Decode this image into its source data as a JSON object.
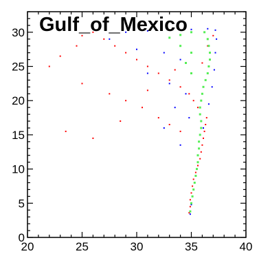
{
  "chart_data": {
    "type": "scatter",
    "title": "Gulf_of_Mexico",
    "xlabel": "",
    "ylabel": "",
    "xlim": [
      20,
      40
    ],
    "ylim": [
      0,
      33
    ],
    "xticks": [
      "20",
      "25",
      "30",
      "35",
      "40"
    ],
    "yticks": [
      "0",
      "5",
      "10",
      "15",
      "20",
      "25",
      "30"
    ],
    "grid": false,
    "legend": "none",
    "colors": {
      "series_red": "#ff0000",
      "series_blue": "#0000ff",
      "series_green": "#55ee55"
    },
    "series": [
      {
        "color": "red",
        "points": [
          [
            34.8,
            3.6
          ],
          [
            34.9,
            4.5
          ],
          [
            34.9,
            5.5
          ],
          [
            35.0,
            6.5
          ],
          [
            35.1,
            7.5
          ],
          [
            35.2,
            8.5
          ],
          [
            35.4,
            9.5
          ],
          [
            35.6,
            10.5
          ],
          [
            35.8,
            11.5
          ],
          [
            35.9,
            12.5
          ],
          [
            36.0,
            13.5
          ],
          [
            36.1,
            14.5
          ],
          [
            36.2,
            15.5
          ],
          [
            36.3,
            16.5
          ],
          [
            36.4,
            17.5
          ],
          [
            35.6,
            19.0
          ],
          [
            35.2,
            20.0
          ],
          [
            34.8,
            21.0
          ],
          [
            34.0,
            22.0
          ],
          [
            33.0,
            23.0
          ],
          [
            32.0,
            24.0
          ],
          [
            31.0,
            25.0
          ],
          [
            30.0,
            26.0
          ],
          [
            29.0,
            27.0
          ],
          [
            28.0,
            28.0
          ],
          [
            27.0,
            29.0
          ],
          [
            26.0,
            30.0
          ],
          [
            25.0,
            29.5
          ],
          [
            24.5,
            28.0
          ],
          [
            23.0,
            26.5
          ],
          [
            22.0,
            25.0
          ],
          [
            25.0,
            22.5
          ],
          [
            27.5,
            21.0
          ],
          [
            29.0,
            20.0
          ],
          [
            30.5,
            19.0
          ],
          [
            32.0,
            17.5
          ],
          [
            33.0,
            16.5
          ],
          [
            34.0,
            15.5
          ],
          [
            23.5,
            15.5
          ],
          [
            26.0,
            14.5
          ],
          [
            28.5,
            17.0
          ],
          [
            31.0,
            21.5
          ],
          [
            33.5,
            24.5
          ],
          [
            36.0,
            25.5
          ],
          [
            36.5,
            28.0
          ],
          [
            37.0,
            29.5
          ]
        ]
      },
      {
        "color": "blue",
        "points": [
          [
            34.9,
            3.4
          ],
          [
            35.0,
            4.8
          ],
          [
            35.6,
            11.0
          ],
          [
            36.1,
            16.0
          ],
          [
            36.6,
            19.5
          ],
          [
            36.9,
            22.0
          ],
          [
            37.1,
            24.5
          ],
          [
            37.2,
            27.0
          ],
          [
            37.3,
            29.0
          ],
          [
            37.2,
            30.3
          ],
          [
            36.5,
            30.5
          ],
          [
            35.0,
            30.4
          ],
          [
            33.0,
            30.3
          ],
          [
            31.0,
            30.2
          ],
          [
            29.0,
            30.0
          ],
          [
            27.5,
            29.0
          ],
          [
            30.0,
            27.5
          ],
          [
            32.5,
            27.0
          ],
          [
            34.0,
            26.0
          ],
          [
            31.0,
            24.0
          ],
          [
            33.0,
            22.5
          ],
          [
            34.5,
            21.0
          ],
          [
            33.5,
            19.0
          ],
          [
            34.8,
            17.5
          ],
          [
            32.5,
            16.0
          ],
          [
            34.0,
            13.5
          ]
        ]
      },
      {
        "color": "green",
        "points": [
          [
            34.9,
            3.8
          ],
          [
            35.0,
            5.0
          ],
          [
            35.1,
            6.0
          ],
          [
            35.2,
            7.0
          ],
          [
            35.3,
            8.0
          ],
          [
            35.4,
            9.0
          ],
          [
            35.5,
            10.0
          ],
          [
            35.6,
            11.0
          ],
          [
            35.6,
            12.0
          ],
          [
            35.7,
            13.0
          ],
          [
            35.7,
            14.0
          ],
          [
            35.8,
            15.0
          ],
          [
            35.9,
            16.0
          ],
          [
            35.9,
            17.0
          ],
          [
            35.8,
            18.0
          ],
          [
            35.8,
            19.0
          ],
          [
            35.9,
            20.0
          ],
          [
            36.0,
            21.0
          ],
          [
            36.1,
            22.0
          ],
          [
            36.3,
            23.0
          ],
          [
            36.5,
            24.0
          ],
          [
            36.6,
            25.0
          ],
          [
            36.7,
            26.0
          ],
          [
            36.7,
            27.0
          ],
          [
            36.6,
            28.0
          ],
          [
            36.5,
            29.0
          ],
          [
            36.2,
            30.0
          ],
          [
            35.0,
            30.0
          ],
          [
            34.0,
            29.6
          ],
          [
            33.0,
            29.2
          ],
          [
            34.0,
            28.0
          ],
          [
            35.0,
            27.0
          ],
          [
            34.5,
            25.5
          ],
          [
            35.0,
            24.0
          ]
        ]
      }
    ]
  }
}
